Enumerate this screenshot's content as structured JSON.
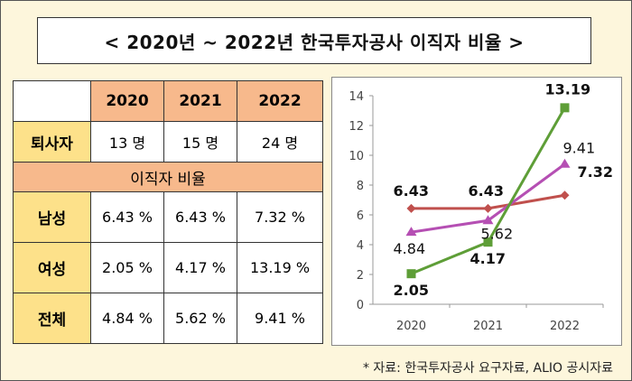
{
  "title": "< 2020년 ~ 2022년 한국투자공사 이직자 비율 >",
  "table": {
    "years": [
      "2020",
      "2021",
      "2022"
    ],
    "retire_label": "퇴사자",
    "retire_values": [
      "13 명",
      "15 명",
      "24 명"
    ],
    "rate_header": "이직자 비율",
    "rows": [
      {
        "label": "남성",
        "values": [
          "6.43 %",
          "6.43 %",
          "7.32 %"
        ]
      },
      {
        "label": "여성",
        "values": [
          "2.05 %",
          "4.17 %",
          "13.19 %"
        ]
      },
      {
        "label": "전체",
        "values": [
          "4.84 %",
          "5.62 %",
          "9.41 %"
        ]
      }
    ]
  },
  "chart_data": {
    "type": "line",
    "x": [
      "2020",
      "2021",
      "2022"
    ],
    "ylim": [
      0,
      14
    ],
    "yticks": [
      "0",
      "2",
      "4",
      "6",
      "8",
      "10",
      "12",
      "14"
    ],
    "grid": false,
    "series": [
      {
        "values": [
          6.43,
          6.43,
          7.32
        ],
        "labels": [
          "6.43",
          "6.43",
          "7.32"
        ],
        "color": "#c0504d",
        "marker": "diamond"
      },
      {
        "values": [
          4.84,
          5.62,
          9.41
        ],
        "labels": [
          "4.84",
          "5.62",
          "9.41"
        ],
        "color": "#b54fb3",
        "marker": "triangle"
      },
      {
        "values": [
          2.05,
          4.17,
          13.19
        ],
        "labels": [
          "2.05",
          "4.17",
          "13.19"
        ],
        "color": "#5e9e37",
        "marker": "square"
      }
    ]
  },
  "source": "* 자료: 한국투자공사 요구자료, ALIO 공시자료",
  "colors": {
    "background": "#fdf6dc",
    "header_orange": "#f7b98c",
    "row_yellow": "#fde18a"
  }
}
